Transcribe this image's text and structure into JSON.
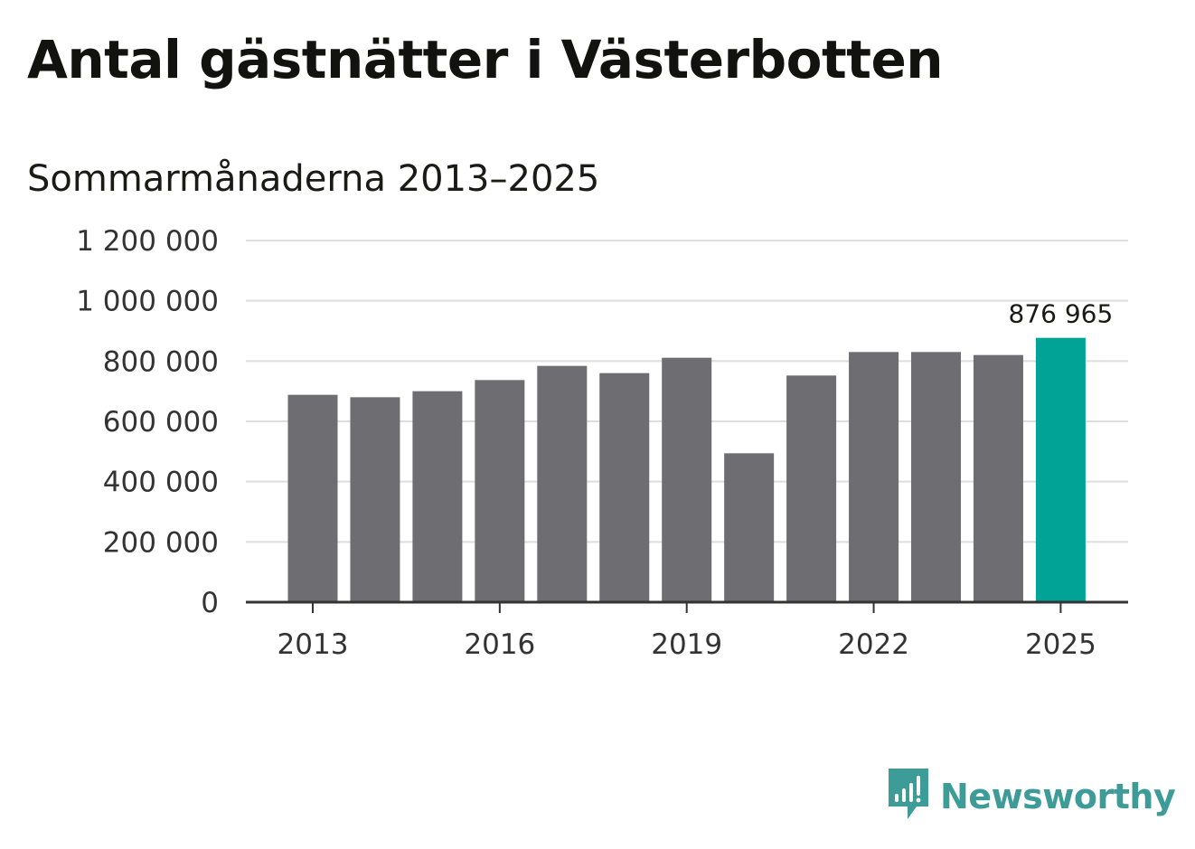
{
  "title": "Antal gästnätter i Västerbotten",
  "subtitle": "Sommarmånaderna 2013–2025",
  "brand": {
    "name": "Newsworthy",
    "icon": "newsworthy-logo-icon",
    "color": "#3e9c98"
  },
  "colors": {
    "bar": "#6d6d72",
    "highlight": "#00a396",
    "grid": "#dddddd",
    "axis": "#333333"
  },
  "chart_data": {
    "type": "bar",
    "categories": [
      "2013",
      "2014",
      "2015",
      "2016",
      "2017",
      "2018",
      "2019",
      "2020",
      "2021",
      "2022",
      "2023",
      "2024",
      "2025"
    ],
    "values": [
      688000,
      680000,
      700000,
      737000,
      784000,
      760000,
      811000,
      494000,
      752000,
      830000,
      830000,
      820000,
      876965
    ],
    "highlight_index": 12,
    "data_labels": [
      {
        "index": 12,
        "text": "876 965"
      }
    ],
    "x_tick_labels": [
      "2013",
      "2016",
      "2019",
      "2022",
      "2025"
    ],
    "y_ticks": [
      0,
      200000,
      400000,
      600000,
      800000,
      1000000,
      1200000
    ],
    "y_tick_labels": [
      "0",
      "200 000",
      "400 000",
      "600 000",
      "800 000",
      "1 000 000",
      "1 200 000"
    ],
    "ylim": [
      0,
      1200000
    ],
    "grid": true,
    "legend": "none"
  }
}
